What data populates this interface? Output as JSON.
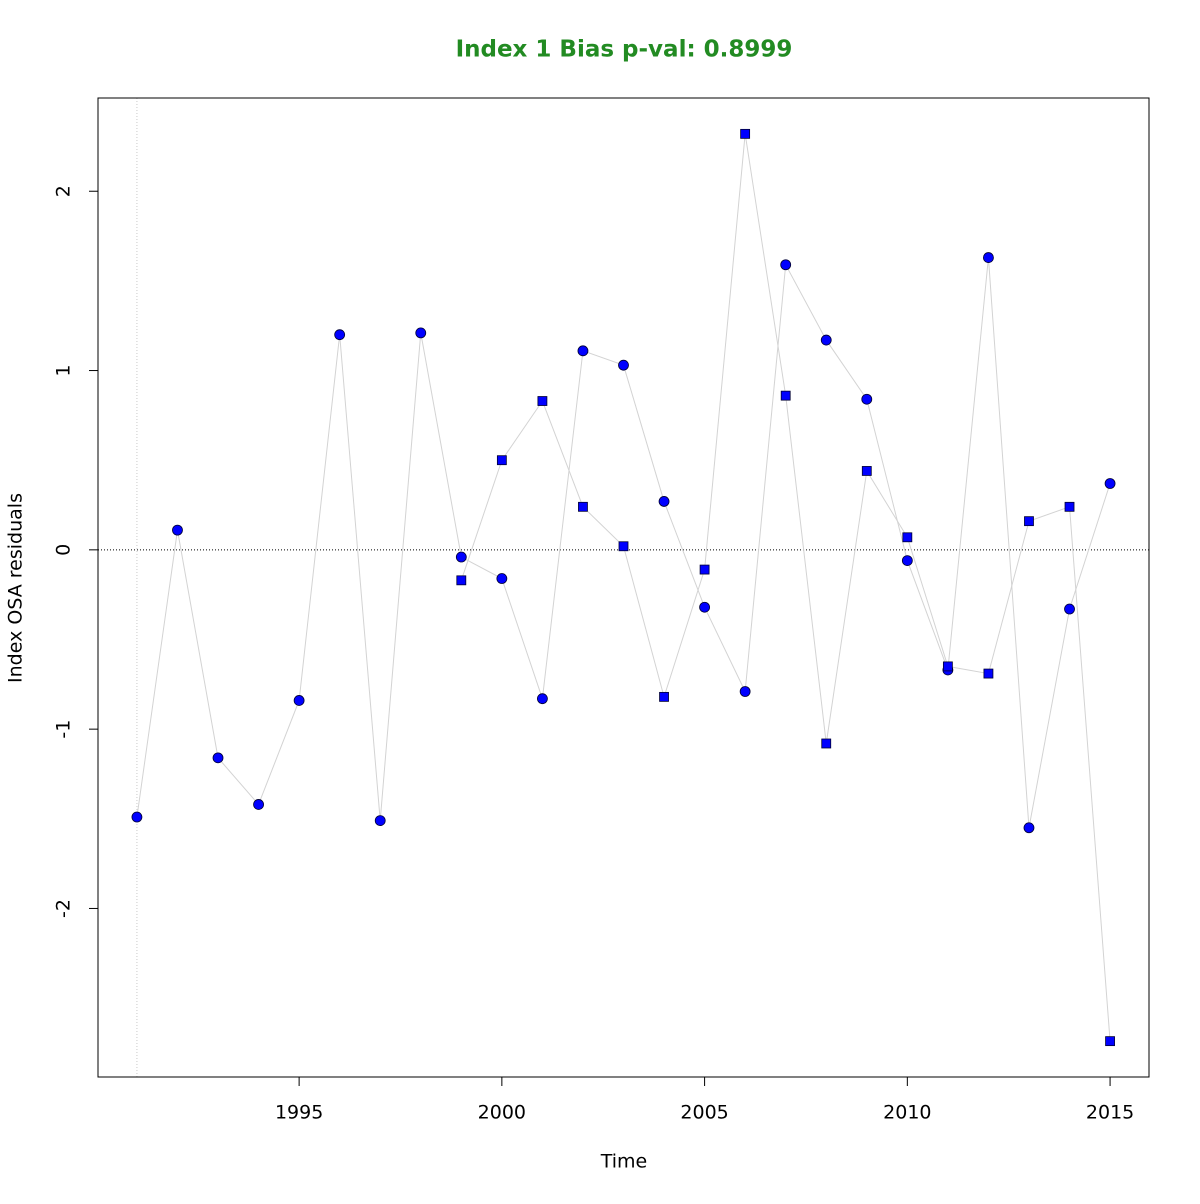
{
  "chart_data": {
    "type": "scatter-line",
    "title": "Index 1 Bias p-val: 0.8999",
    "title_color": "#228b22",
    "xlabel": "Time",
    "ylabel": "Index OSA residuals",
    "xlim": [
      1990.04,
      2015.96
    ],
    "ylim": [
      -2.94,
      2.52
    ],
    "xticks": [
      1995,
      2000,
      2005,
      2010,
      2015
    ],
    "yticks": [
      -2,
      -1,
      0,
      1,
      2
    ],
    "hline": 0,
    "vline": 1991,
    "line_color": "#d3d3d3",
    "series": [
      {
        "marker": "circle",
        "color": "#0000ff",
        "x": [
          1991,
          1992,
          1993,
          1994,
          1995,
          1996,
          1997,
          1998,
          1999,
          2000,
          2001,
          2002,
          2003,
          2004,
          2005,
          2006,
          2007,
          2008,
          2009,
          2010,
          2011,
          2012,
          2013,
          2014,
          2015
        ],
        "values": [
          -1.49,
          0.11,
          -1.16,
          -1.42,
          -0.84,
          1.2,
          -1.51,
          1.21,
          -0.04,
          -0.16,
          -0.83,
          1.11,
          1.03,
          0.27,
          -0.32,
          -0.79,
          1.59,
          1.17,
          0.84,
          -0.06,
          -0.67,
          1.63,
          -1.55,
          -0.33,
          0.37
        ]
      },
      {
        "marker": "square",
        "color": "#0000ff",
        "x": [
          1999,
          2000,
          2001,
          2002,
          2003,
          2004,
          2005,
          2006,
          2007,
          2008,
          2009,
          2010,
          2011,
          2012,
          2013,
          2014,
          2015
        ],
        "values": [
          -0.17,
          0.5,
          0.83,
          0.24,
          0.02,
          -0.82,
          -0.11,
          2.32,
          0.86,
          -1.08,
          0.44,
          0.07,
          -0.65,
          -0.69,
          0.16,
          0.24,
          -2.74
        ]
      }
    ]
  }
}
